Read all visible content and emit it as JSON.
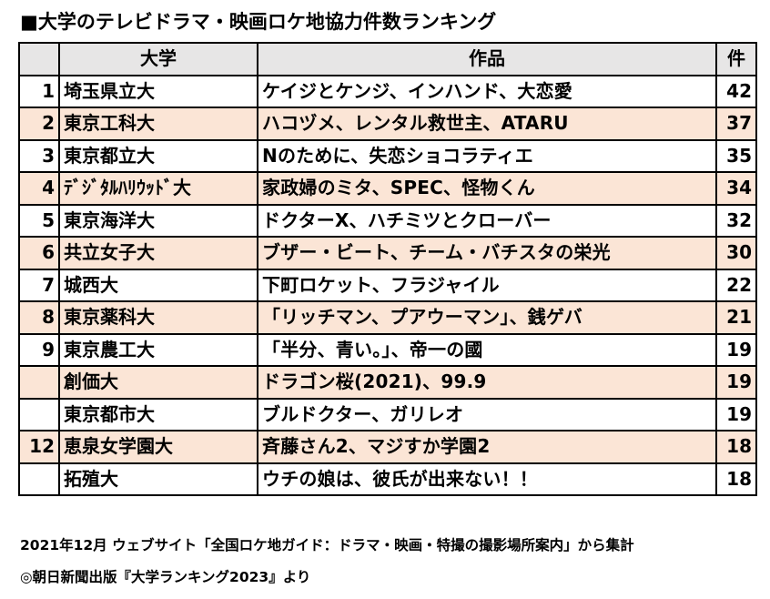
{
  "title": "■大学のテレビドラマ・映画ロケ地協力件数ランキング",
  "table": {
    "headers": {
      "rank": "",
      "university": "大学",
      "works": "作品",
      "count": "件"
    },
    "rows": [
      {
        "rank": "1",
        "university": "埼玉県立大",
        "works": "ケイジとケンジ、インハンド、大恋愛",
        "count": "42",
        "shaded": false
      },
      {
        "rank": "2",
        "university": "東京工科大",
        "works": "ハコヅメ、レンタル救世主、ATARU",
        "count": "37",
        "shaded": true
      },
      {
        "rank": "3",
        "university": "東京都立大",
        "works": "Nのために、失恋ショコラティエ",
        "count": "35",
        "shaded": false
      },
      {
        "rank": "4",
        "university": "ﾃﾞｼﾞﾀﾙﾊﾘｳｯﾄﾞ大",
        "works": "家政婦のミタ、SPEC、怪物くん",
        "count": "34",
        "shaded": true
      },
      {
        "rank": "5",
        "university": "東京海洋大",
        "works": "ドクターX、ハチミツとクローバー",
        "count": "32",
        "shaded": false
      },
      {
        "rank": "6",
        "university": "共立女子大",
        "works": "ブザー・ビート、チーム・バチスタの栄光",
        "count": "30",
        "shaded": true
      },
      {
        "rank": "7",
        "university": "城西大",
        "works": "下町ロケット、フラジャイル",
        "count": "22",
        "shaded": false
      },
      {
        "rank": "8",
        "university": "東京薬科大",
        "works": "「リッチマン、プアウーマン」、銭ゲバ",
        "count": "21",
        "shaded": true
      },
      {
        "rank": "9",
        "university": "東京農工大",
        "works": "「半分、青い。」、帝一の國",
        "count": "19",
        "shaded": false
      },
      {
        "rank": "",
        "university": "創価大",
        "works": "ドラゴン桜(2021)、99.9",
        "count": "19",
        "shaded": true
      },
      {
        "rank": "",
        "university": "東京都市大",
        "works": "ブルドクター、ガリレオ",
        "count": "19",
        "shaded": false
      },
      {
        "rank": "12",
        "university": "恵泉女学園大",
        "works": "斉藤さん2、マジすか学園2",
        "count": "18",
        "shaded": true
      },
      {
        "rank": "",
        "university": "拓殖大",
        "works": "ウチの娘は、彼氏が出来ない！！",
        "count": "18",
        "shaded": false
      }
    ]
  },
  "notes": {
    "source": "2021年12月 ウェブサイト「全国ロケ地ガイド：ドラマ・映画・特撮の撮影場所案内」から集計",
    "credit": "◎朝日新聞出版『大学ランキング2023』より"
  },
  "colors": {
    "header_bg": "#e7e6e6",
    "shaded_row_bg": "#fbe5d6",
    "border": "#000000"
  }
}
